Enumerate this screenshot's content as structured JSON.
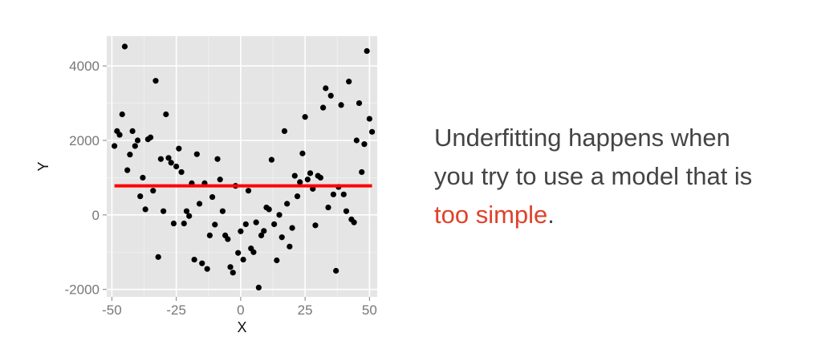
{
  "chart_data": {
    "type": "scatter",
    "title": "",
    "xlabel": "X",
    "ylabel": "Y",
    "xlim": [
      -52,
      53
    ],
    "ylim": [
      -2200,
      4800
    ],
    "xticks": [
      -50,
      -25,
      0,
      25,
      50
    ],
    "xtick_labels": [
      "-50",
      "-25",
      "0",
      "25",
      "50"
    ],
    "yticks": [
      -2000,
      0,
      2000,
      4000
    ],
    "ytick_labels": [
      "-2000",
      "0",
      "2000",
      "4000"
    ],
    "grid": true,
    "background": "#e5e5e5",
    "point_color": "#000000",
    "points": [
      {
        "x": -45,
        "y": 4520
      },
      {
        "x": -49,
        "y": 1850
      },
      {
        "x": -48,
        "y": 2250
      },
      {
        "x": -47,
        "y": 2150
      },
      {
        "x": -46,
        "y": 2700
      },
      {
        "x": -44,
        "y": 1200
      },
      {
        "x": -43,
        "y": 1620
      },
      {
        "x": -42,
        "y": 2250
      },
      {
        "x": -41,
        "y": 1850
      },
      {
        "x": -40,
        "y": 2000
      },
      {
        "x": -39,
        "y": 500
      },
      {
        "x": -38,
        "y": 1000
      },
      {
        "x": -37,
        "y": 150
      },
      {
        "x": -36,
        "y": 2030
      },
      {
        "x": -35,
        "y": 2080
      },
      {
        "x": -34,
        "y": 650
      },
      {
        "x": -33,
        "y": 3600
      },
      {
        "x": -32,
        "y": -1130
      },
      {
        "x": -31,
        "y": 1500
      },
      {
        "x": -30,
        "y": 100
      },
      {
        "x": -29,
        "y": 2700
      },
      {
        "x": -28,
        "y": 1530
      },
      {
        "x": -27,
        "y": 1400
      },
      {
        "x": -26,
        "y": -230
      },
      {
        "x": -25,
        "y": 1300
      },
      {
        "x": -24,
        "y": 1780
      },
      {
        "x": -23,
        "y": 1150
      },
      {
        "x": -22,
        "y": -230
      },
      {
        "x": -21,
        "y": 100
      },
      {
        "x": -20,
        "y": -30
      },
      {
        "x": -19,
        "y": 850
      },
      {
        "x": -18,
        "y": -1200
      },
      {
        "x": -17,
        "y": 1630
      },
      {
        "x": -16,
        "y": 300
      },
      {
        "x": -15,
        "y": -1300
      },
      {
        "x": -14,
        "y": 850
      },
      {
        "x": -13,
        "y": -1450
      },
      {
        "x": -12,
        "y": -550
      },
      {
        "x": -11,
        "y": 480
      },
      {
        "x": -10,
        "y": -260
      },
      {
        "x": -9,
        "y": 1500
      },
      {
        "x": -8,
        "y": 950
      },
      {
        "x": -7,
        "y": 100
      },
      {
        "x": -6,
        "y": -550
      },
      {
        "x": -5,
        "y": -650
      },
      {
        "x": -4,
        "y": -1400
      },
      {
        "x": -3,
        "y": -1550
      },
      {
        "x": -2,
        "y": 780
      },
      {
        "x": -1,
        "y": -1020
      },
      {
        "x": 0,
        "y": -440
      },
      {
        "x": 1,
        "y": -1200
      },
      {
        "x": 2,
        "y": -250
      },
      {
        "x": 3,
        "y": 650
      },
      {
        "x": 4,
        "y": -900
      },
      {
        "x": 5,
        "y": -1000
      },
      {
        "x": 6,
        "y": -200
      },
      {
        "x": 7,
        "y": -1950
      },
      {
        "x": 8,
        "y": -550
      },
      {
        "x": 9,
        "y": -430
      },
      {
        "x": 10,
        "y": 200
      },
      {
        "x": 11,
        "y": 150
      },
      {
        "x": 12,
        "y": 1480
      },
      {
        "x": 13,
        "y": -250
      },
      {
        "x": 14,
        "y": -1220
      },
      {
        "x": 15,
        "y": 0
      },
      {
        "x": 16,
        "y": -600
      },
      {
        "x": 17,
        "y": 2250
      },
      {
        "x": 18,
        "y": 300
      },
      {
        "x": 19,
        "y": -850
      },
      {
        "x": 20,
        "y": -350
      },
      {
        "x": 21,
        "y": 1050
      },
      {
        "x": 22,
        "y": 500
      },
      {
        "x": 23,
        "y": 880
      },
      {
        "x": 24,
        "y": 1650
      },
      {
        "x": 25,
        "y": 2630
      },
      {
        "x": 26,
        "y": 950
      },
      {
        "x": 27,
        "y": 1120
      },
      {
        "x": 28,
        "y": 700
      },
      {
        "x": 29,
        "y": -280
      },
      {
        "x": 30,
        "y": 1050
      },
      {
        "x": 31,
        "y": 1000
      },
      {
        "x": 32,
        "y": 2880
      },
      {
        "x": 33,
        "y": 3400
      },
      {
        "x": 34,
        "y": 200
      },
      {
        "x": 35,
        "y": 3200
      },
      {
        "x": 36,
        "y": 550
      },
      {
        "x": 37,
        "y": -1500
      },
      {
        "x": 38,
        "y": 750
      },
      {
        "x": 39,
        "y": 2950
      },
      {
        "x": 40,
        "y": 550
      },
      {
        "x": 41,
        "y": 100
      },
      {
        "x": 42,
        "y": 3580
      },
      {
        "x": 43,
        "y": -120
      },
      {
        "x": 44,
        "y": -200
      },
      {
        "x": 45,
        "y": 2000
      },
      {
        "x": 46,
        "y": 3000
      },
      {
        "x": 47,
        "y": 1150
      },
      {
        "x": 48,
        "y": 1900
      },
      {
        "x": 49,
        "y": 4400
      },
      {
        "x": 50,
        "y": 2580
      },
      {
        "x": 51,
        "y": 2230
      }
    ],
    "fit_line": {
      "x0": -49,
      "x1": 51,
      "y": 780,
      "color": "#ff0000"
    }
  },
  "caption": {
    "line1": "Underfitting happens when",
    "line2": "you try to use a model that is",
    "highlight": "too simple",
    "end": "."
  },
  "colors": {
    "text": "#444444",
    "accent": "#e0412a"
  }
}
